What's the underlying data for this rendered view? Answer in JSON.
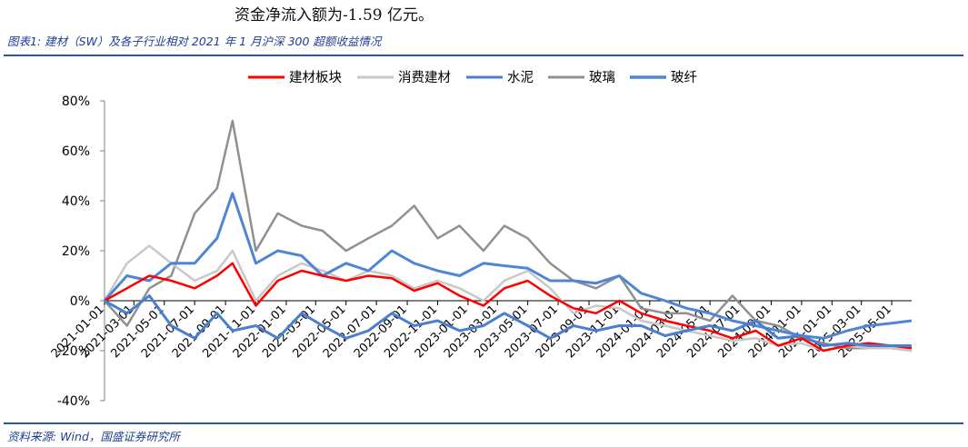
{
  "page": {
    "top_text": "资金净流入额为-1.59 亿元。",
    "figure_caption": "图表1: 建材（SW）及各子行业相对 2021 年 1 月沪深 300 超额收益情况",
    "source_note": "资料来源: Wind，国盛证券研究所"
  },
  "chart_data": {
    "type": "line",
    "title": "",
    "xlabel": "",
    "ylabel": "",
    "ylim": [
      -40,
      80
    ],
    "y_unit": "%",
    "y_ticks": [
      -40,
      -20,
      0,
      20,
      40,
      60,
      80
    ],
    "y_tick_labels": [
      "-40%",
      "-20%",
      "0%",
      "20%",
      "40%",
      "60%",
      "80%"
    ],
    "x_tick_labels": [
      "2021-01-01",
      "2021-03-01",
      "2021-05-01",
      "2021-07-01",
      "2021-09-01",
      "2021-11-01",
      "2022-01-01",
      "2022-03-01",
      "2022-05-01",
      "2022-07-01",
      "2022-09-01",
      "2022-11-01",
      "2023-01-01",
      "2023-03-01",
      "2023-05-01",
      "2023-07-01",
      "2023-09-01",
      "2023-11-01",
      "2024-01-01",
      "2024-03-01",
      "2024-05-01",
      "2024-07-01",
      "2024-09-01",
      "2024-11-01",
      "2025-01-01",
      "2025-03-01",
      "2025-05-01"
    ],
    "x_range": [
      "2021-01-01",
      "2025-06-10"
    ],
    "grid": false,
    "legend_position": "top",
    "x": [
      "2021-01-01",
      "2021-02-15",
      "2021-04-01",
      "2021-05-15",
      "2021-07-01",
      "2021-08-15",
      "2021-09-15",
      "2021-11-01",
      "2021-12-15",
      "2022-02-01",
      "2022-03-15",
      "2022-05-01",
      "2022-06-15",
      "2022-08-01",
      "2022-09-15",
      "2022-11-01",
      "2022-12-15",
      "2023-02-01",
      "2023-03-15",
      "2023-05-01",
      "2023-06-15",
      "2023-08-01",
      "2023-09-15",
      "2023-11-01",
      "2023-12-15",
      "2024-02-01",
      "2024-03-15",
      "2024-05-01",
      "2024-06-15",
      "2024-08-01",
      "2024-09-15",
      "2024-11-01",
      "2024-12-15",
      "2025-02-01",
      "2025-03-15",
      "2025-05-01",
      "2025-06-10"
    ],
    "series": [
      {
        "name": "建材板块",
        "color": "#ff0000",
        "values": [
          0,
          5,
          10,
          8,
          5,
          10,
          15,
          -2,
          8,
          12,
          10,
          8,
          10,
          9,
          4,
          7,
          2,
          -2,
          5,
          8,
          2,
          -3,
          -5,
          0,
          -5,
          -8,
          -10,
          -12,
          -15,
          -12,
          -18,
          -15,
          -20,
          -18,
          -17,
          -18,
          -19
        ]
      },
      {
        "name": "消费建材",
        "color": "#c8c8c8",
        "values": [
          0,
          15,
          22,
          15,
          8,
          12,
          20,
          0,
          10,
          15,
          12,
          8,
          12,
          10,
          5,
          8,
          5,
          0,
          8,
          12,
          5,
          -5,
          -2,
          -3,
          -8,
          -10,
          -12,
          -14,
          -16,
          -15,
          -18,
          -17,
          -20,
          -18,
          -19,
          -19,
          -20
        ]
      },
      {
        "name": "水泥",
        "color": "#4a7fd0",
        "values": [
          0,
          -5,
          2,
          -10,
          -15,
          -5,
          -12,
          -10,
          -15,
          -5,
          -10,
          -15,
          -12,
          -5,
          -10,
          -8,
          -12,
          -10,
          -5,
          -10,
          -15,
          -10,
          -12,
          -10,
          -10,
          -14,
          -12,
          -10,
          -12,
          -8,
          -15,
          -14,
          -18,
          -17,
          -18,
          -18,
          -18
        ]
      },
      {
        "name": "玻璃",
        "color": "#909090",
        "values": [
          0,
          -10,
          5,
          10,
          35,
          45,
          72,
          20,
          35,
          30,
          28,
          20,
          25,
          30,
          38,
          25,
          30,
          20,
          30,
          25,
          15,
          8,
          5,
          10,
          -3,
          -5,
          -5,
          -8,
          2,
          -8,
          -10,
          -15,
          -17,
          -19,
          -19,
          -19,
          -20
        ]
      },
      {
        "name": "玻纤",
        "color": "#4f86d4",
        "values": [
          0,
          10,
          8,
          15,
          15,
          25,
          43,
          15,
          20,
          18,
          10,
          15,
          12,
          20,
          15,
          12,
          10,
          15,
          14,
          13,
          8,
          8,
          7,
          10,
          3,
          0,
          -3,
          -5,
          -8,
          -10,
          -12,
          -14,
          -15,
          -12,
          -10,
          -9,
          -8
        ]
      }
    ]
  }
}
